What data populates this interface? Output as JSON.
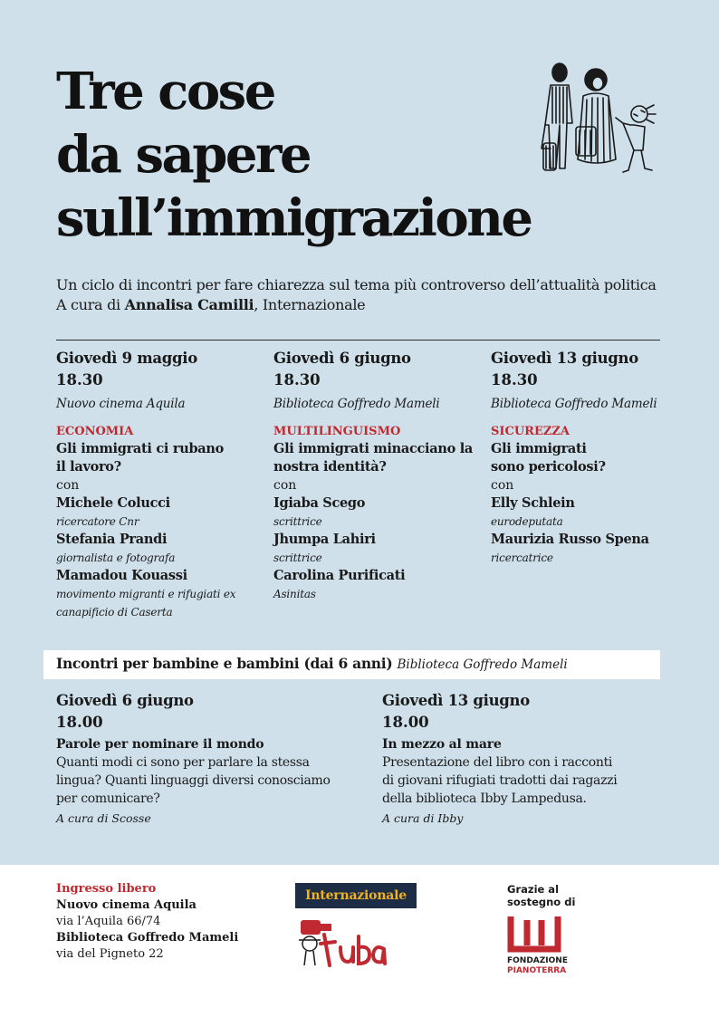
{
  "title": {
    "lines": [
      "Tre cose",
      "da sapere",
      "sull’immigrazione"
    ]
  },
  "intro": {
    "line1": "Un ciclo di incontri per fare chiarezza sul tema più controverso dell’attualità politica",
    "prefix": "A cura di ",
    "curator": "Annalisa Camilli",
    "suffix": ", Internazionale"
  },
  "events": [
    {
      "date": "Giovedì 9 maggio",
      "time": "18.30",
      "venue": "Nuovo cinema Aquila",
      "topic": "ECONOMIA",
      "question": [
        "Gli immigrati ci rubano",
        "il lavoro?"
      ],
      "con": "con",
      "speakers": [
        {
          "name": "Michele Colucci",
          "role": [
            "ricercatore Cnr"
          ]
        },
        {
          "name": "Stefania Prandi",
          "role": [
            "giornalista e fotografa"
          ]
        },
        {
          "name": "Mamadou Kouassi",
          "role": [
            "movimento migranti e rifugiati ex",
            "canapificio di Caserta"
          ]
        }
      ]
    },
    {
      "date": "Giovedì 6 giugno",
      "time": "18.30",
      "venue": "Biblioteca Goffredo Mameli",
      "topic": "MULTILINGUISMO",
      "question": [
        "Gli immigrati minacciano la",
        "nostra identità?"
      ],
      "con": "con",
      "speakers": [
        {
          "name": "Igiaba Scego",
          "role": [
            "scrittrice"
          ]
        },
        {
          "name": "Jhumpa Lahiri",
          "role": [
            "scrittrice"
          ]
        },
        {
          "name": "Carolina Purificati",
          "role": [
            "Asinitas"
          ]
        }
      ]
    },
    {
      "date": "Giovedì 13 giugno",
      "time": "18.30",
      "venue": "Biblioteca Goffredo Mameli",
      "topic": "SICUREZZA",
      "question": [
        "Gli immigrati",
        "sono pericolosi?"
      ],
      "con": "con",
      "speakers": [
        {
          "name": "Elly Schlein",
          "role": [
            "eurodeputata"
          ]
        },
        {
          "name": "Maurizia Russo Spena",
          "role": [
            "ricercatrice"
          ]
        }
      ]
    }
  ],
  "kids": {
    "heading": "Incontri per bambine e bambini (dai 6 anni)",
    "venue": "Biblioteca Goffredo Mameli",
    "events": [
      {
        "date": "Giovedì 6 giugno",
        "time": "18.00",
        "title": "Parole per nominare il mondo",
        "desc": [
          "Quanti modi ci sono per parlare la stessa",
          "lingua? Quanti linguaggi diversi conosciamo",
          "per comunicare?"
        ],
        "cura": "A cura di Scosse"
      },
      {
        "date": "Giovedì 13 giugno",
        "time": "18.00",
        "title": "In mezzo al mare",
        "desc": [
          "Presentazione del libro con i racconti",
          "di giovani rifugiati tradotti dai ragazzi",
          "della biblioteca Ibby Lampedusa."
        ],
        "cura": "A cura di Ibby"
      }
    ]
  },
  "footer": {
    "ingresso": "Ingresso libero",
    "venue1": "Nuovo cinema Aquila",
    "addr1": "via l’Aquila 66/74",
    "venue2": "Biblioteca Goffredo Mameli",
    "addr2": "via del Pigneto 22",
    "internazionale": "Internazionale",
    "tuba": "Tuba",
    "grazie": [
      "Grazie al",
      "sostegno di"
    ],
    "fondazione": [
      "FONDAZIONE",
      "PIANOTERRA"
    ]
  },
  "colors": {
    "background": "#cfe0ea",
    "accent_red": "#c0292f",
    "internazionale_bg": "#1d2d45",
    "internazionale_text": "#f2b21d"
  }
}
